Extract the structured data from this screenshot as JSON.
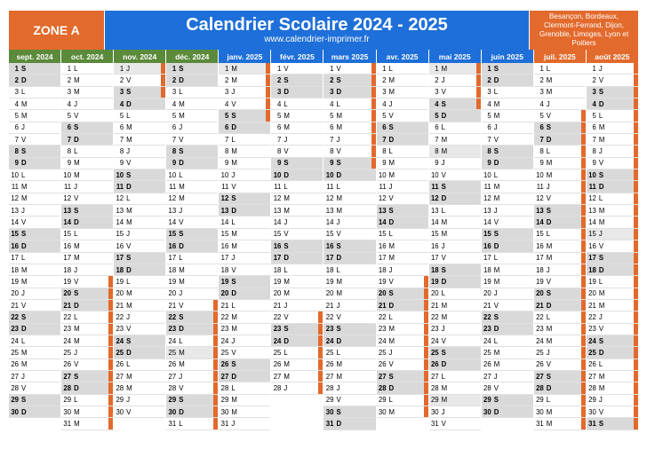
{
  "header": {
    "zone": "ZONE A",
    "title": "Calendrier Scolaire 2024 - 2025",
    "url": "www.calendrier-imprimer.fr",
    "cities": "Besançon, Bordeaux, Clermont-Ferrand, Dijon, Grenoble, Limoges, Lyon et Poitiers"
  },
  "colors": {
    "green": "#5a8a3a",
    "blue": "#1e6fd9",
    "orange": "#e26a2c",
    "grey_we": "#d9d9d9",
    "grey_hol": "#e8e8e8"
  },
  "months": [
    {
      "label": "sept. 2024",
      "headColor": "#5a8a3a",
      "startDow": 6,
      "days": 30,
      "vac": [],
      "hol": []
    },
    {
      "label": "oct. 2024",
      "headColor": "#5a8a3a",
      "startDow": 1,
      "days": 31,
      "vac": [
        [
          19,
          31
        ]
      ],
      "hol": []
    },
    {
      "label": "nov. 2024",
      "headColor": "#5a8a3a",
      "startDow": 4,
      "days": 30,
      "vac": [
        [
          1,
          3
        ]
      ],
      "hol": [
        1,
        11
      ]
    },
    {
      "label": "déc. 2024",
      "headColor": "#5a8a3a",
      "startDow": 6,
      "days": 31,
      "vac": [
        [
          21,
          31
        ]
      ],
      "hol": [
        25
      ]
    },
    {
      "label": "janv. 2025",
      "headColor": "#1e6fd9",
      "startDow": 2,
      "days": 31,
      "vac": [
        [
          1,
          5
        ]
      ],
      "hol": [
        1
      ]
    },
    {
      "label": "févr. 2025",
      "headColor": "#1e6fd9",
      "startDow": 5,
      "days": 28,
      "vac": [
        [
          22,
          28
        ]
      ],
      "hol": []
    },
    {
      "label": "mars 2025",
      "headColor": "#1e6fd9",
      "startDow": 5,
      "days": 31,
      "vac": [
        [
          1,
          9
        ]
      ],
      "hol": []
    },
    {
      "label": "avr. 2025",
      "headColor": "#1e6fd9",
      "startDow": 1,
      "days": 30,
      "vac": [
        [
          19,
          30
        ]
      ],
      "hol": [
        21
      ]
    },
    {
      "label": "mai 2025",
      "headColor": "#1e6fd9",
      "startDow": 3,
      "days": 31,
      "vac": [
        [
          1,
          4
        ]
      ],
      "hol": [
        1,
        8,
        29
      ]
    },
    {
      "label": "juin 2025",
      "headColor": "#1e6fd9",
      "startDow": 6,
      "days": 30,
      "vac": [],
      "hol": [
        9
      ]
    },
    {
      "label": "juil. 2025",
      "headColor": "#e26a2c",
      "startDow": 1,
      "days": 31,
      "vac": [
        [
          5,
          31
        ]
      ],
      "hol": [
        14
      ]
    },
    {
      "label": "août 2025",
      "headColor": "#e26a2c",
      "startDow": 4,
      "days": 31,
      "vac": [
        [
          1,
          31
        ]
      ],
      "hol": [
        15
      ]
    }
  ],
  "dows": [
    "L",
    "M",
    "M",
    "J",
    "V",
    "S",
    "D"
  ]
}
